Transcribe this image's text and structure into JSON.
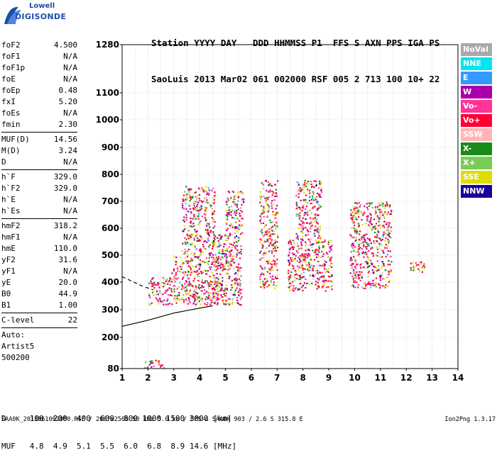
{
  "logo": {
    "line1": "Lowell",
    "line2": "DIGISONDE"
  },
  "header": {
    "row1": "Station YYYY DAY   DDD HHMMSS P1  FFS S AXN PPS IGA PS",
    "row2": "SaoLuis 2013 Mar02 061 002000 RSF 005 2 713 100 10+ 22"
  },
  "params": {
    "group1": [
      {
        "name": "foF2",
        "value": "4.500"
      },
      {
        "name": "foF1",
        "value": "N/A"
      },
      {
        "name": "foF1p",
        "value": "N/A"
      },
      {
        "name": "foE",
        "value": "N/A"
      },
      {
        "name": "foEp",
        "value": "0.48"
      },
      {
        "name": "fxI",
        "value": "5.20"
      },
      {
        "name": "foEs",
        "value": "N/A"
      },
      {
        "name": "fmin",
        "value": "2.30"
      }
    ],
    "group2": [
      {
        "name": "MUF(D)",
        "value": "14.56"
      },
      {
        "name": "M(D)",
        "value": "3.24"
      },
      {
        "name": "D",
        "value": "N/A"
      }
    ],
    "group3": [
      {
        "name": "h`F",
        "value": "329.0"
      },
      {
        "name": "h`F2",
        "value": "329.0"
      },
      {
        "name": "h`E",
        "value": "N/A"
      },
      {
        "name": "h`Es",
        "value": "N/A"
      }
    ],
    "group4": [
      {
        "name": "hmF2",
        "value": "318.2"
      },
      {
        "name": "hmF1",
        "value": "N/A"
      },
      {
        "name": "hmE",
        "value": "110.0"
      },
      {
        "name": "yF2",
        "value": "31.6"
      },
      {
        "name": "yF1",
        "value": "N/A"
      },
      {
        "name": "yE",
        "value": "20.0"
      },
      {
        "name": "B0",
        "value": "44.9"
      },
      {
        "name": "B1",
        "value": "1.00"
      }
    ],
    "group5": [
      {
        "name": "C-level",
        "value": "22"
      }
    ],
    "autoscaling": [
      "Auto:",
      "Artist5",
      "500200"
    ]
  },
  "legend": [
    {
      "label": "NoVal",
      "color": "#a9a9a9"
    },
    {
      "label": "NNE",
      "color": "#00e5ee"
    },
    {
      "label": "E",
      "color": "#3399ff"
    },
    {
      "label": "W",
      "color": "#aa00aa"
    },
    {
      "label": "Vo-",
      "color": "#ff3399"
    },
    {
      "label": "Vo+",
      "color": "#ff0033"
    },
    {
      "label": "SSW",
      "color": "#ffb6b6"
    },
    {
      "label": "X-",
      "color": "#1a8a1a"
    },
    {
      "label": "X+",
      "color": "#77cc55"
    },
    {
      "label": "SSE",
      "color": "#dddd00"
    },
    {
      "label": "NNW",
      "color": "#1a0099"
    }
  ],
  "bottom": {
    "row1": "D     100  200  400  600  800 1000 1500 3000 [km]",
    "row2": "MUF   4.8  4.9  5.1  5.5  6.0  6.8  8.9 14.6 [MHz]"
  },
  "footer": {
    "left": "SAA0K_2013061002000.RSF / 260fx256h 50 kHz 5.0 km / DPS-4 SAA0K 903 / 2.6 S 315.8 E",
    "right": "Ion2Png 1.3.17"
  },
  "chart_data": {
    "type": "scatter",
    "x_ticks": [
      1,
      2,
      3,
      4,
      5,
      6,
      7,
      8,
      9,
      10,
      11,
      12,
      13,
      14
    ],
    "y_ticks": [
      80,
      200,
      300,
      400,
      500,
      600,
      700,
      800,
      900,
      1000,
      1100,
      1280
    ],
    "xlim": [
      1,
      14
    ],
    "ylim": [
      80,
      1280
    ],
    "grid": true,
    "traces": [
      {
        "name": "solid",
        "x": [
          1.0,
          2.0,
          3.0,
          4.0,
          4.5
        ],
        "y": [
          240,
          262,
          288,
          306,
          314
        ]
      },
      {
        "name": "dashed",
        "x": [
          1.0,
          1.4,
          1.8,
          2.2
        ],
        "y": [
          420,
          402,
          385,
          372
        ]
      }
    ],
    "echo_clusters": [
      {
        "x": [
          2.0,
          4.7
        ],
        "y": [
          320,
          345
        ]
      },
      {
        "x": [
          2.0,
          2.9
        ],
        "y": [
          345,
          420
        ]
      },
      {
        "x": [
          2.9,
          4.7
        ],
        "y": [
          340,
          500
        ]
      },
      {
        "x": [
          3.3,
          4.6
        ],
        "y": [
          500,
          760
        ]
      },
      {
        "x": [
          4.5,
          5.6
        ],
        "y": [
          320,
          580
        ]
      },
      {
        "x": [
          5.0,
          5.7
        ],
        "y": [
          580,
          740
        ]
      },
      {
        "x": [
          6.3,
          7.0
        ],
        "y": [
          380,
          780
        ]
      },
      {
        "x": [
          7.4,
          9.1
        ],
        "y": [
          370,
          560
        ]
      },
      {
        "x": [
          7.7,
          8.7
        ],
        "y": [
          560,
          780
        ]
      },
      {
        "x": [
          9.8,
          11.4
        ],
        "y": [
          380,
          700
        ]
      },
      {
        "x": [
          12.1,
          12.7
        ],
        "y": [
          440,
          480
        ]
      },
      {
        "x": [
          1.8,
          2.6
        ],
        "y": [
          85,
          115
        ]
      }
    ]
  }
}
